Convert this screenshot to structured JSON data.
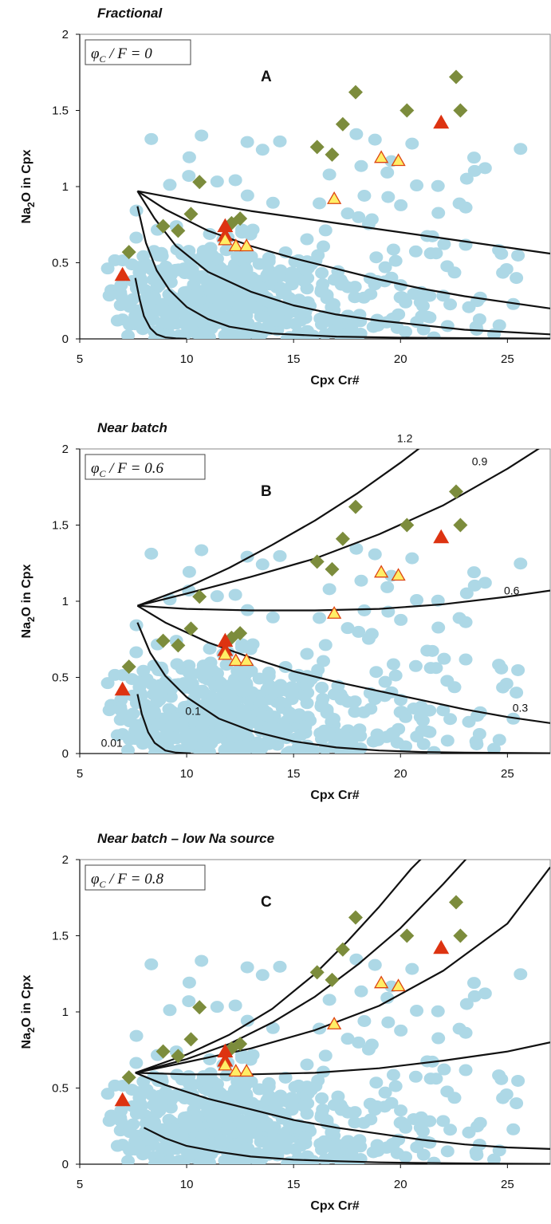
{
  "panel_top": [
    0,
    520,
    1035
  ],
  "colors": {
    "melt_dots": "#add8e6",
    "diamonds": "#7c8c3c",
    "triangles_red": "#dd3311",
    "triangles_yellow": "#ffee66",
    "triangle_yellow_stroke": "#dd4411",
    "curves": "#111111"
  },
  "chart_data": [
    {
      "type": "scatter",
      "title": "Fractional",
      "panel_letter": "A",
      "parameter_label": "φC / F = 0",
      "xlabel": "Cpx Cr#",
      "ylabel": "Na2O in Cpx",
      "xlim": [
        5,
        27
      ],
      "ylim": [
        0,
        2
      ],
      "xticks": [
        5,
        10,
        15,
        20,
        25
      ],
      "yticks": [
        0,
        0.5,
        1,
        1.5,
        2
      ],
      "ytick_labels": [
        "0",
        "0.5",
        "1",
        "1.5",
        "2"
      ],
      "curve_labels": [],
      "curves": [
        {
          "x": [
            7.7,
            10,
            13,
            16,
            19,
            22,
            25,
            27
          ],
          "y": [
            0.97,
            0.91,
            0.84,
            0.78,
            0.72,
            0.66,
            0.6,
            0.56
          ]
        },
        {
          "x": [
            7.7,
            9,
            11,
            13,
            15,
            17,
            19,
            21,
            23,
            25,
            27
          ],
          "y": [
            0.97,
            0.85,
            0.71,
            0.61,
            0.53,
            0.46,
            0.39,
            0.33,
            0.28,
            0.24,
            0.2
          ]
        },
        {
          "x": [
            7.7,
            8.5,
            9.5,
            11,
            13,
            15,
            17,
            19,
            21,
            23,
            25,
            27
          ],
          "y": [
            0.97,
            0.79,
            0.61,
            0.44,
            0.31,
            0.22,
            0.16,
            0.12,
            0.09,
            0.06,
            0.045,
            0.03
          ]
        },
        {
          "x": [
            7.7,
            8.1,
            8.6,
            9.2,
            10,
            11,
            12,
            14,
            17,
            20,
            24,
            27
          ],
          "y": [
            0.87,
            0.63,
            0.45,
            0.32,
            0.21,
            0.13,
            0.08,
            0.035,
            0.015,
            0.008,
            0.004,
            0.002
          ]
        },
        {
          "x": [
            7.6,
            7.8,
            8.0,
            8.3,
            8.6,
            9.0,
            9.5,
            10
          ],
          "y": [
            0.4,
            0.26,
            0.15,
            0.07,
            0.03,
            0.01,
            0.003,
            0.001
          ]
        }
      ],
      "diamonds": {
        "x": [
          7.3,
          8.9,
          9.6,
          10.2,
          10.6,
          12.1,
          12.5,
          16.1,
          16.8,
          17.3,
          17.9,
          20.3,
          22.6,
          22.8
        ],
        "y": [
          0.57,
          0.74,
          0.71,
          0.82,
          1.03,
          0.76,
          0.79,
          1.26,
          1.21,
          1.41,
          1.62,
          1.5,
          1.72,
          1.5
        ]
      },
      "triangles_red": {
        "x": [
          7.0,
          11.8,
          11.8,
          21.9
        ],
        "y": [
          0.42,
          0.74,
          0.68,
          1.42
        ]
      },
      "triangles_yellow": {
        "x": [
          11.8,
          12.3,
          12.8,
          16.9,
          19.1,
          19.9
        ],
        "y": [
          0.65,
          0.61,
          0.61,
          0.92,
          1.19,
          1.17
        ]
      }
    },
    {
      "type": "scatter",
      "title": "Near batch",
      "panel_letter": "B",
      "parameter_label": "φC / F = 0.6",
      "xlabel": "Cpx Cr#",
      "ylabel": "Na2O in Cpx",
      "xlim": [
        5,
        27
      ],
      "ylim": [
        0,
        2
      ],
      "xticks": [
        5,
        10,
        15,
        20,
        25
      ],
      "yticks": [
        0,
        0.5,
        1,
        1.5,
        2
      ],
      "ytick_labels": [
        "0",
        "0.5",
        "1",
        "1.5",
        "2"
      ],
      "curve_labels": [
        {
          "text": "1.2",
          "x": 20.2,
          "y": 2.07
        },
        {
          "text": "0.9",
          "x": 23.7,
          "y": 1.92
        },
        {
          "text": "0.6",
          "x": 25.2,
          "y": 1.07
        },
        {
          "text": "0.3",
          "x": 25.6,
          "y": 0.3
        },
        {
          "text": "0.1",
          "x": 10.3,
          "y": 0.28
        },
        {
          "text": "0.01",
          "x": 6.5,
          "y": 0.07
        }
      ],
      "curves": [
        {
          "x": [
            7.7,
            10,
            12,
            14,
            16,
            18,
            20,
            21.5
          ],
          "y": [
            0.97,
            1.09,
            1.22,
            1.37,
            1.53,
            1.71,
            1.91,
            2.07
          ]
        },
        {
          "x": [
            7.7,
            10,
            13,
            16,
            19,
            22,
            25,
            27
          ],
          "y": [
            0.97,
            1.05,
            1.16,
            1.28,
            1.44,
            1.63,
            1.87,
            2.05
          ]
        },
        {
          "x": [
            7.7,
            10,
            13,
            16,
            19,
            22,
            25,
            27
          ],
          "y": [
            0.97,
            0.95,
            0.94,
            0.94,
            0.95,
            0.98,
            1.03,
            1.07
          ]
        },
        {
          "x": [
            7.7,
            9,
            11,
            13,
            15,
            17,
            19,
            21,
            23,
            25,
            27
          ],
          "y": [
            0.97,
            0.86,
            0.73,
            0.63,
            0.54,
            0.47,
            0.41,
            0.35,
            0.29,
            0.24,
            0.2
          ]
        },
        {
          "x": [
            7.7,
            8.3,
            9,
            10,
            11.5,
            13,
            15,
            17,
            19,
            21,
            23,
            25,
            27
          ],
          "y": [
            0.86,
            0.66,
            0.51,
            0.37,
            0.23,
            0.15,
            0.08,
            0.04,
            0.02,
            0.01,
            0.006,
            0.004,
            0.002
          ]
        },
        {
          "x": [
            7.7,
            7.9,
            8.2,
            8.5,
            9.0,
            9.5,
            10.2
          ],
          "y": [
            0.39,
            0.26,
            0.14,
            0.07,
            0.02,
            0.006,
            0.001
          ]
        }
      ],
      "diamonds": {
        "x": [
          7.3,
          8.9,
          9.6,
          10.2,
          10.6,
          12.1,
          12.5,
          16.1,
          16.8,
          17.3,
          17.9,
          20.3,
          22.6,
          22.8
        ],
        "y": [
          0.57,
          0.74,
          0.71,
          0.82,
          1.03,
          0.76,
          0.79,
          1.26,
          1.21,
          1.41,
          1.62,
          1.5,
          1.72,
          1.5
        ]
      },
      "triangles_red": {
        "x": [
          7.0,
          11.8,
          11.8,
          21.9
        ],
        "y": [
          0.42,
          0.74,
          0.68,
          1.42
        ]
      },
      "triangles_yellow": {
        "x": [
          11.8,
          12.3,
          12.8,
          16.9,
          19.1,
          19.9
        ],
        "y": [
          0.65,
          0.61,
          0.61,
          0.92,
          1.19,
          1.17
        ]
      }
    },
    {
      "type": "scatter",
      "title": "Near batch – low Na source",
      "panel_letter": "C",
      "parameter_label": "φC / F = 0.8",
      "xlabel": "Cpx Cr#",
      "ylabel": "Na2O in Cpx",
      "xlim": [
        5,
        27
      ],
      "ylim": [
        0,
        2
      ],
      "xticks": [
        5,
        10,
        15,
        20,
        25
      ],
      "yticks": [
        0,
        0.5,
        1,
        1.5,
        2
      ],
      "ytick_labels": [
        "0",
        "0.5",
        "1",
        "1.5",
        "2"
      ],
      "curve_labels": [],
      "curves": [
        {
          "x": [
            7.6,
            10,
            12,
            14,
            16,
            17.5,
            19,
            20.5,
            21.5
          ],
          "y": [
            0.6,
            0.72,
            0.85,
            1.02,
            1.25,
            1.46,
            1.69,
            1.94,
            2.08
          ]
        },
        {
          "x": [
            7.6,
            10,
            12,
            14,
            16,
            18,
            20,
            22,
            23.5
          ],
          "y": [
            0.6,
            0.69,
            0.79,
            0.93,
            1.1,
            1.31,
            1.55,
            1.84,
            2.07
          ]
        },
        {
          "x": [
            7.6,
            10,
            13,
            16,
            19,
            22,
            25,
            27
          ],
          "y": [
            0.6,
            0.67,
            0.76,
            0.88,
            1.04,
            1.27,
            1.58,
            1.95
          ]
        },
        {
          "x": [
            7.6,
            10,
            13,
            16,
            19,
            22,
            25,
            27
          ],
          "y": [
            0.6,
            0.59,
            0.59,
            0.6,
            0.63,
            0.68,
            0.74,
            0.8
          ]
        },
        {
          "x": [
            7.6,
            9,
            11,
            13,
            15,
            17,
            19,
            21,
            23,
            25,
            27
          ],
          "y": [
            0.6,
            0.52,
            0.43,
            0.36,
            0.29,
            0.24,
            0.2,
            0.16,
            0.13,
            0.11,
            0.1
          ]
        },
        {
          "x": [
            8.0,
            9,
            10,
            11.5,
            13,
            15,
            17,
            19,
            21,
            23,
            25,
            27
          ],
          "y": [
            0.24,
            0.17,
            0.12,
            0.08,
            0.05,
            0.03,
            0.02,
            0.012,
            0.008,
            0.005,
            0.003,
            0.002
          ]
        }
      ],
      "diamonds": {
        "x": [
          7.3,
          8.9,
          9.6,
          10.2,
          10.6,
          12.1,
          12.5,
          16.1,
          16.8,
          17.3,
          17.9,
          20.3,
          22.6,
          22.8
        ],
        "y": [
          0.57,
          0.74,
          0.71,
          0.82,
          1.03,
          0.76,
          0.79,
          1.26,
          1.21,
          1.41,
          1.62,
          1.5,
          1.72,
          1.5
        ]
      },
      "triangles_red": {
        "x": [
          7.0,
          11.8,
          11.8,
          21.9
        ],
        "y": [
          0.42,
          0.74,
          0.68,
          1.42
        ]
      },
      "triangles_yellow": {
        "x": [
          11.8,
          12.3,
          12.8,
          16.9,
          19.1,
          19.9
        ],
        "y": [
          0.65,
          0.61,
          0.61,
          0.92,
          1.19,
          1.17
        ]
      }
    }
  ]
}
